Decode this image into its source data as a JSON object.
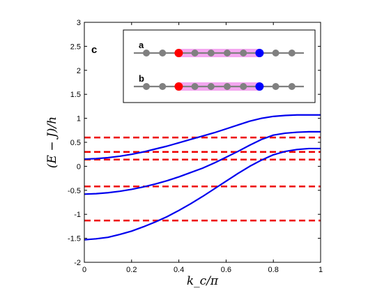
{
  "chart_data": {
    "type": "line",
    "panel_label": "c",
    "xlabel": "k_c/π",
    "ylabel": "(E − J)/h",
    "xlim": [
      0,
      1
    ],
    "ylim": [
      -2,
      3
    ],
    "xticks": [
      0,
      0.2,
      0.4,
      0.6,
      0.8,
      1
    ],
    "xtick_labels": [
      "0",
      "0.2",
      "0.4",
      "0.6",
      "0.8",
      "1"
    ],
    "yticks": [
      -2,
      -1.5,
      -1,
      -0.5,
      0,
      0.5,
      1,
      1.5,
      2,
      2.5,
      3
    ],
    "ytick_labels": [
      "-2",
      "-1.5",
      "-1",
      "-0.5",
      "0",
      "0.5",
      "1",
      "1.5",
      "2",
      "2.5",
      "3"
    ],
    "grid": false,
    "colors": {
      "bands": "#0000ee",
      "levels": "#ee0000",
      "site_gray": "#808080",
      "site_red": "#ff0000",
      "site_blue": "#0000ff",
      "highlight": "#f4a6f0"
    },
    "bands": [
      {
        "x": [
          0,
          0.05,
          0.1,
          0.15,
          0.2,
          0.25,
          0.3,
          0.35,
          0.4,
          0.45,
          0.5,
          0.55,
          0.6,
          0.65,
          0.7,
          0.75,
          0.8,
          0.85,
          0.9,
          0.95,
          1.0
        ],
        "y": [
          -1.53,
          -1.51,
          -1.48,
          -1.42,
          -1.35,
          -1.26,
          -1.16,
          -1.05,
          -0.92,
          -0.78,
          -0.63,
          -0.47,
          -0.31,
          -0.15,
          0.0,
          0.13,
          0.24,
          0.31,
          0.35,
          0.37,
          0.37
        ]
      },
      {
        "x": [
          0,
          0.05,
          0.1,
          0.15,
          0.2,
          0.25,
          0.3,
          0.35,
          0.4,
          0.45,
          0.5,
          0.55,
          0.6,
          0.65,
          0.7,
          0.75,
          0.8,
          0.85,
          0.9,
          0.95,
          1.0
        ],
        "y": [
          -0.58,
          -0.57,
          -0.55,
          -0.52,
          -0.48,
          -0.43,
          -0.37,
          -0.3,
          -0.22,
          -0.13,
          -0.04,
          0.07,
          0.19,
          0.31,
          0.44,
          0.56,
          0.65,
          0.69,
          0.71,
          0.72,
          0.72
        ]
      },
      {
        "x": [
          0,
          0.05,
          0.1,
          0.15,
          0.2,
          0.25,
          0.3,
          0.35,
          0.4,
          0.45,
          0.5,
          0.55,
          0.6,
          0.65,
          0.7,
          0.75,
          0.8,
          0.85,
          0.9,
          0.95,
          1.0
        ],
        "y": [
          0.15,
          0.16,
          0.18,
          0.21,
          0.25,
          0.3,
          0.36,
          0.42,
          0.49,
          0.56,
          0.63,
          0.7,
          0.78,
          0.86,
          0.94,
          1.0,
          1.04,
          1.06,
          1.07,
          1.07,
          1.07
        ]
      }
    ],
    "levels": [
      -1.13,
      -0.42,
      0.14,
      0.3,
      0.6
    ],
    "inset": {
      "rows": [
        {
          "label": "a",
          "sites": 10,
          "red_site": 2,
          "blue_site": 7
        },
        {
          "label": "b",
          "sites": 10,
          "red_site": 2,
          "blue_site": 7
        }
      ]
    }
  }
}
